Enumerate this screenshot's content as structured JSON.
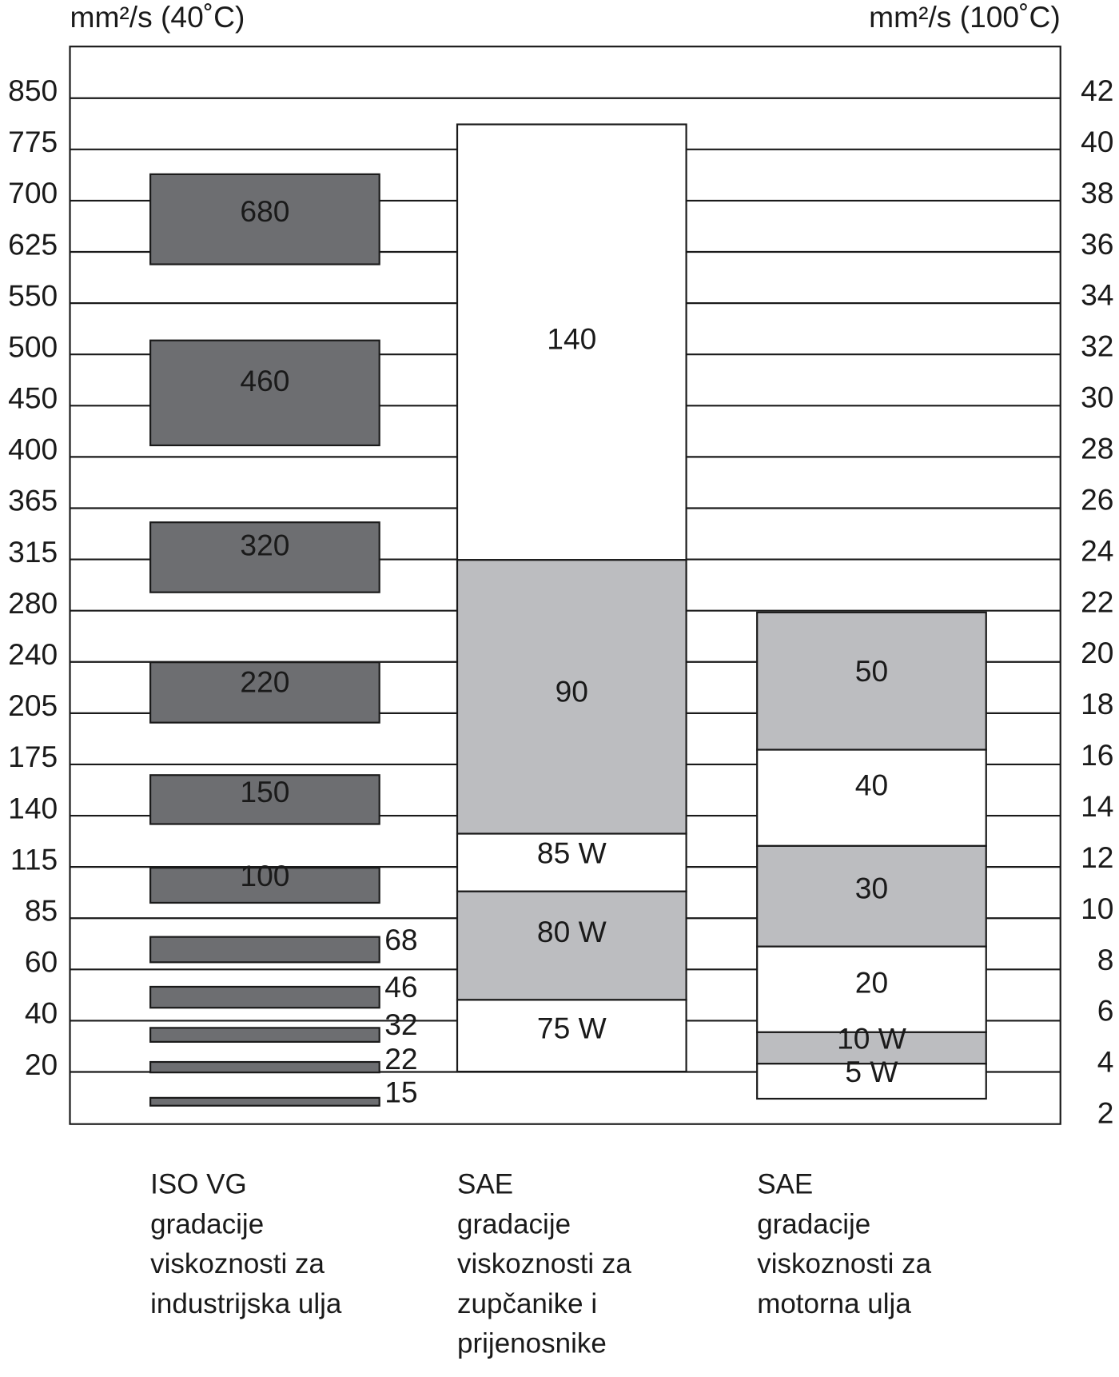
{
  "axis_left": {
    "unit": "mm²/s (40˚C)",
    "ticks": [
      850,
      775,
      700,
      625,
      550,
      500,
      450,
      400,
      365,
      315,
      280,
      240,
      205,
      175,
      140,
      115,
      85,
      60,
      40,
      20
    ]
  },
  "axis_right": {
    "unit": "mm²/s (100˚C)",
    "ticks": [
      42,
      40,
      38,
      36,
      34,
      32,
      30,
      28,
      26,
      24,
      22,
      20,
      18,
      16,
      14,
      12,
      10,
      8,
      6,
      4,
      2
    ]
  },
  "columns": [
    {
      "caption": [
        "ISO VG",
        "gradacije",
        "viskoznosti za",
        "industrijska ulja"
      ],
      "grades": [
        "680",
        "460",
        "320",
        "220",
        "150",
        "100",
        "68",
        "46",
        "32",
        "22",
        "15"
      ]
    },
    {
      "caption": [
        "SAE",
        "gradacije",
        "viskoznosti za",
        "zupčanike i",
        "prijenosnike"
      ],
      "grades": [
        "140",
        "90",
        "85 W",
        "80 W",
        "75 W"
      ]
    },
    {
      "caption": [
        "SAE",
        "gradacije",
        "viskoznosti za",
        "motorna ulja"
      ],
      "grades": [
        "50",
        "40",
        "30",
        "20",
        "10 W",
        "5 W"
      ]
    }
  ]
}
